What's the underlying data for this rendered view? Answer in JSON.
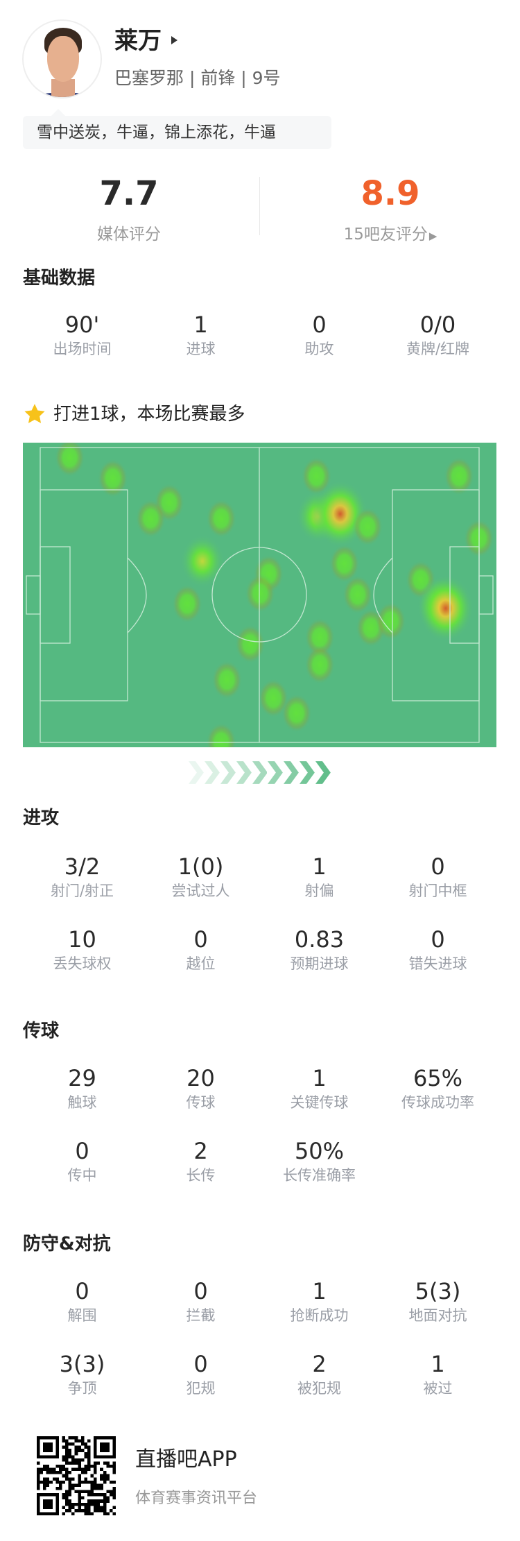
{
  "player": {
    "name": "莱万",
    "team": "巴塞罗那",
    "position": "前锋",
    "number": "9号",
    "subline": "巴塞罗那 | 前锋 | 9号",
    "tag": "雪中送炭，牛逼，锦上添花，牛逼"
  },
  "ratings": {
    "media_value": "7.7",
    "media_label": "媒体评分",
    "fan_value": "8.9",
    "fan_label": "15吧友评分",
    "fan_color": "#f0612b"
  },
  "basic": {
    "title": "基础数据",
    "stats": [
      {
        "value": "90'",
        "label": "出场时间"
      },
      {
        "value": "1",
        "label": "进球"
      },
      {
        "value": "0",
        "label": "助攻"
      },
      {
        "value": "0/0",
        "label": "黄牌/红牌"
      }
    ]
  },
  "highlight": {
    "icon": "star-icon",
    "text": "打进1球，本场比赛最多"
  },
  "heatmap": {
    "pitch_color": "#55b981",
    "direction_icon": "chevron-right-icon"
  },
  "attack": {
    "title": "进攻",
    "stats": [
      {
        "value": "3/2",
        "label": "射门/射正"
      },
      {
        "value": "1(0)",
        "label": "尝试过人"
      },
      {
        "value": "1",
        "label": "射偏"
      },
      {
        "value": "0",
        "label": "射门中框"
      },
      {
        "value": "10",
        "label": "丢失球权"
      },
      {
        "value": "0",
        "label": "越位"
      },
      {
        "value": "0.83",
        "label": "预期进球"
      },
      {
        "value": "0",
        "label": "错失进球"
      }
    ]
  },
  "passing": {
    "title": "传球",
    "stats": [
      {
        "value": "29",
        "label": "触球"
      },
      {
        "value": "20",
        "label": "传球"
      },
      {
        "value": "1",
        "label": "关键传球"
      },
      {
        "value": "65%",
        "label": "传球成功率"
      },
      {
        "value": "0",
        "label": "传中"
      },
      {
        "value": "2",
        "label": "长传"
      },
      {
        "value": "50%",
        "label": "长传准确率"
      }
    ]
  },
  "defense": {
    "title": "防守&对抗",
    "stats": [
      {
        "value": "0",
        "label": "解围"
      },
      {
        "value": "0",
        "label": "拦截"
      },
      {
        "value": "1",
        "label": "抢断成功"
      },
      {
        "value": "5(3)",
        "label": "地面对抗"
      },
      {
        "value": "3(3)",
        "label": "争顶"
      },
      {
        "value": "0",
        "label": "犯规"
      },
      {
        "value": "2",
        "label": "被犯规"
      },
      {
        "value": "1",
        "label": "被过"
      }
    ]
  },
  "footer": {
    "app_name": "直播吧APP",
    "app_subtitle": "体育赛事资讯平台"
  }
}
